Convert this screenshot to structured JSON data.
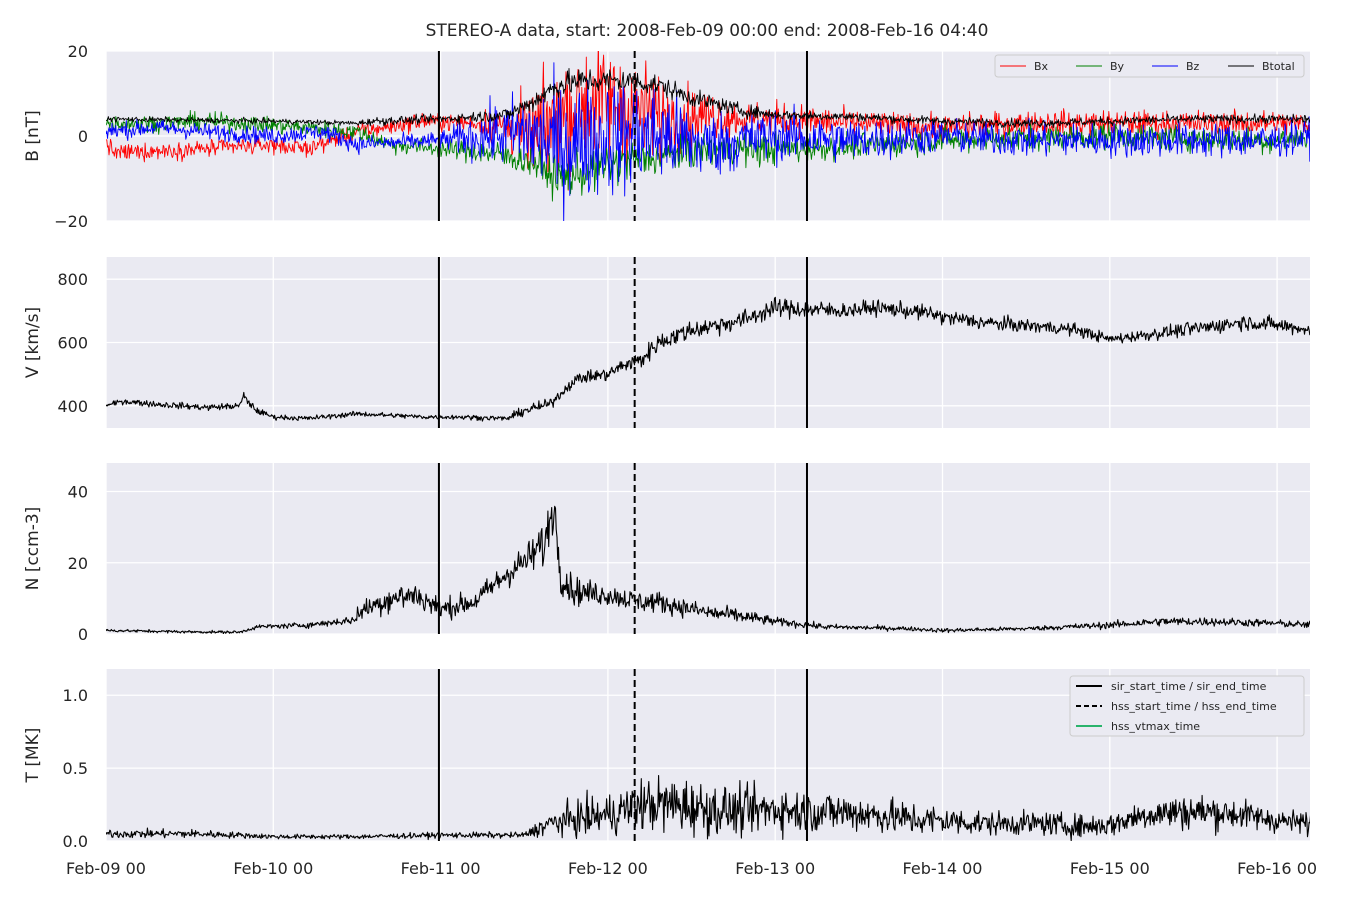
{
  "chart_data": {
    "type": "line",
    "title": "STEREO-A data, start: 2008-Feb-09 00:00  end: 2008-Feb-16 04:40",
    "x_tick_labels": [
      "Feb-09 00",
      "Feb-10 00",
      "Feb-11 00",
      "Feb-12 00",
      "Feb-13 00",
      "Feb-14 00",
      "Feb-15 00",
      "Feb-16 00"
    ],
    "x_range_days": [
      0,
      7.2
    ],
    "event_lines": [
      {
        "name": "sir_start_time",
        "day": 1.99,
        "style": "solid"
      },
      {
        "name": "hss_start_time",
        "day": 3.16,
        "style": "dashed"
      },
      {
        "name": "sir_end_time",
        "day": 4.19,
        "style": "solid"
      }
    ],
    "panels": [
      {
        "ylabel": "B [nT]",
        "ylim": [
          -20,
          20
        ],
        "yticks": [
          -20,
          0,
          20
        ],
        "ytick_labels": [
          "−20",
          "0",
          "20"
        ],
        "legend": {
          "position": "top-right",
          "entries": [
            "Bx",
            "By",
            "Bz",
            "Btotal"
          ]
        },
        "series": [
          {
            "name": "Bx",
            "color": "#ff0000",
            "style": "noisy",
            "x": [
              0,
              0.05,
              0.3,
              0.6,
              1.0,
              1.2,
              1.5,
              1.9,
              2.2,
              2.4,
              2.55,
              2.7,
              2.85,
              3.0,
              3.2,
              3.4,
              3.6,
              3.8,
              4.0,
              4.5,
              5.0,
              5.5,
              6.0,
              6.5,
              7.0,
              7.2
            ],
            "y": [
              -1.5,
              -4,
              -3.5,
              -3,
              -2,
              -3,
              1,
              3.5,
              3,
              2,
              0,
              5,
              8,
              8,
              6,
              4,
              5,
              4,
              4,
              3,
              2,
              3,
              3,
              3,
              3,
              3
            ],
            "noise": [
              1,
              1,
              1,
              1,
              1,
              1,
              1,
              1,
              1,
              3,
              5,
              7,
              7,
              7,
              6,
              4,
              3,
              2,
              2,
              1.5,
              1.5,
              1.5,
              1.5,
              1.5,
              1.5,
              1.5
            ]
          },
          {
            "name": "By",
            "color": "#008000",
            "style": "noisy",
            "x": [
              0,
              0.3,
              0.6,
              1.2,
              1.5,
              1.7,
              2.0,
              2.3,
              2.55,
              2.7,
              2.9,
              3.1,
              3.3,
              3.6,
              3.9,
              4.2,
              5.0,
              6.0,
              7.0,
              7.2
            ],
            "y": [
              3,
              3,
              3.5,
              2,
              1,
              -2,
              -3,
              -4,
              -6,
              -10,
              -8,
              -6,
              -5,
              -3,
              -3,
              -3,
              -1,
              0,
              -1,
              0
            ],
            "noise": [
              1,
              1,
              1,
              1,
              1,
              1,
              1,
              1.5,
              2,
              2.5,
              2.5,
              2.5,
              2,
              2,
              2,
              1.5,
              1.5,
              1.5,
              1.5,
              1.5
            ]
          },
          {
            "name": "Bz",
            "color": "#0000ff",
            "style": "noisy",
            "x": [
              0,
              0.3,
              0.6,
              1.0,
              1.3,
              1.5,
              2.0,
              2.5,
              2.7,
              3.0,
              3.3,
              3.6,
              4.0,
              4.5,
              5.0,
              5.5,
              6.0,
              6.5,
              7.0,
              7.2
            ],
            "y": [
              1,
              2,
              1,
              0,
              1,
              -2,
              -1,
              1,
              -2,
              0,
              0,
              -2,
              0,
              -1,
              0,
              -1,
              -1,
              -1,
              -1,
              0
            ],
            "noise": [
              1,
              1,
              1,
              1,
              1,
              1,
              1,
              5,
              7,
              7,
              6,
              4,
              3,
              2.5,
              2,
              2,
              2,
              2,
              2,
              2
            ]
          },
          {
            "name": "Btotal",
            "color": "#000000",
            "style": "noisy",
            "x": [
              0,
              1.0,
              1.5,
              1.6,
              2.0,
              2.4,
              2.55,
              2.7,
              2.85,
              3.0,
              3.1,
              3.3,
              3.5,
              3.8,
              4.0,
              4.5,
              5.0,
              5.5,
              6.0,
              6.5,
              7.0,
              7.2
            ],
            "y": [
              4,
              3.5,
              3,
              3.5,
              4,
              5,
              8,
              12,
              13,
              13,
              13,
              12,
              9,
              6,
              5,
              4.5,
              3.5,
              3,
              3.5,
              4,
              4,
              4
            ],
            "noise": [
              0.3,
              0.3,
              0.3,
              0.5,
              0.5,
              0.8,
              1.2,
              1.5,
              1.5,
              1.5,
              1.5,
              1.2,
              1,
              0.8,
              0.6,
              0.5,
              0.5,
              0.5,
              0.5,
              0.5,
              0.5,
              0.5
            ]
          }
        ]
      },
      {
        "ylabel": "V [km/s]",
        "ylim": [
          330,
          870
        ],
        "yticks": [
          400,
          600,
          800
        ],
        "ytick_labels": [
          "400",
          "600",
          "800"
        ],
        "series": [
          {
            "name": "V",
            "color": "#000000",
            "style": "noisy",
            "x": [
              0,
              0.1,
              0.3,
              0.6,
              0.8,
              0.82,
              0.9,
              1.0,
              1.2,
              1.5,
              1.9,
              2.1,
              2.4,
              2.5,
              2.65,
              2.8,
              2.85,
              3.0,
              3.1,
              3.2,
              3.3,
              3.5,
              3.8,
              4.0,
              4.2,
              4.4,
              4.6,
              4.8,
              4.95,
              5.0,
              5.3,
              5.6,
              5.8,
              6.0,
              6.3,
              6.6,
              6.8,
              7.0,
              7.2
            ],
            "y": [
              400,
              415,
              405,
              395,
              400,
              430,
              385,
              365,
              360,
              375,
              365,
              365,
              360,
              385,
              405,
              480,
              490,
              500,
              530,
              545,
              600,
              640,
              670,
              710,
              705,
              700,
              710,
              700,
              690,
              680,
              660,
              650,
              640,
              610,
              630,
              650,
              665,
              655,
              640
            ],
            "noise": [
              3,
              5,
              5,
              5,
              5,
              8,
              5,
              4,
              4,
              4,
              4,
              4,
              4,
              8,
              8,
              8,
              10,
              10,
              12,
              15,
              15,
              15,
              15,
              15,
              15,
              12,
              12,
              12,
              12,
              12,
              12,
              10,
              10,
              8,
              10,
              12,
              12,
              12,
              10
            ]
          }
        ]
      },
      {
        "ylabel": "N [ccm-3]",
        "ylim": [
          0,
          48
        ],
        "yticks": [
          0,
          20,
          40
        ],
        "ytick_labels": [
          "0",
          "20",
          "40"
        ],
        "series": [
          {
            "name": "N",
            "color": "#000000",
            "style": "noisy",
            "x": [
              0,
              0.5,
              0.8,
              0.9,
              1.2,
              1.5,
              1.45,
              1.6,
              1.7,
              1.85,
              2.0,
              2.1,
              2.2,
              2.4,
              2.55,
              2.6,
              2.62,
              2.65,
              2.68,
              2.72,
              2.8,
              3.0,
              3.2,
              3.3,
              3.5,
              3.6,
              3.8,
              4.0,
              4.3,
              4.8,
              5.0,
              5.5,
              6.0,
              6.3,
              6.6,
              7.0,
              7.2
            ],
            "y": [
              1,
              0.6,
              0.5,
              2,
              2.5,
              4,
              5,
              8,
              10,
              11,
              7,
              8,
              9,
              17,
              22,
              25,
              24,
              32,
              35,
              16,
              12,
              11,
              9,
              9,
              7,
              6,
              5,
              3.5,
              2,
              1.5,
              1,
              1.5,
              2.5,
              3.5,
              3.5,
              3,
              2.5
            ],
            "noise": [
              0.2,
              0.2,
              0.2,
              0.3,
              0.4,
              0.6,
              1,
              1.5,
              2,
              2,
              1.5,
              1.5,
              1.5,
              2,
              2.5,
              3,
              3,
              3,
              3,
              2.5,
              2,
              1.5,
              1.5,
              1.5,
              1.2,
              1.2,
              1,
              0.6,
              0.4,
              0.3,
              0.3,
              0.3,
              0.5,
              0.6,
              0.6,
              0.5,
              0.5
            ]
          }
        ]
      },
      {
        "ylabel": "T [MK]",
        "ylim": [
          0,
          1.18
        ],
        "yticks": [
          0.0,
          0.5,
          1.0
        ],
        "ytick_labels": [
          "0.0",
          "0.5",
          "1.0"
        ],
        "legend": {
          "position": "top-right",
          "entries": [
            {
              "label": "sir_start_time / sir_end_time",
              "style": "solid",
              "color": "#000000"
            },
            {
              "label": "hss_start_time / hss_end_time",
              "style": "dashed",
              "color": "#000000"
            },
            {
              "label": "hss_vtmax_time",
              "style": "solid",
              "color": "#2ab36c"
            }
          ]
        },
        "series": [
          {
            "name": "T",
            "color": "#000000",
            "style": "noisy",
            "x": [
              0,
              0.5,
              0.8,
              1.0,
              1.5,
              2.0,
              2.2,
              2.5,
              2.65,
              2.8,
              3.0,
              3.2,
              3.4,
              3.6,
              3.8,
              4.0,
              4.2,
              4.4,
              4.6,
              4.8,
              5.0,
              5.3,
              5.6,
              5.8,
              6.0,
              6.2,
              6.4,
              6.6,
              6.8,
              7.0,
              7.2
            ],
            "y": [
              0.05,
              0.05,
              0.04,
              0.03,
              0.03,
              0.04,
              0.04,
              0.04,
              0.12,
              0.15,
              0.18,
              0.25,
              0.25,
              0.22,
              0.2,
              0.22,
              0.2,
              0.2,
              0.18,
              0.15,
              0.14,
              0.12,
              0.12,
              0.1,
              0.11,
              0.18,
              0.2,
              0.2,
              0.18,
              0.14,
              0.12
            ],
            "noise": [
              0.015,
              0.015,
              0.01,
              0.008,
              0.008,
              0.01,
              0.01,
              0.01,
              0.04,
              0.06,
              0.07,
              0.09,
              0.1,
              0.09,
              0.08,
              0.08,
              0.07,
              0.07,
              0.06,
              0.06,
              0.05,
              0.04,
              0.04,
              0.04,
              0.04,
              0.05,
              0.06,
              0.06,
              0.05,
              0.04,
              0.04
            ]
          }
        ]
      }
    ]
  }
}
